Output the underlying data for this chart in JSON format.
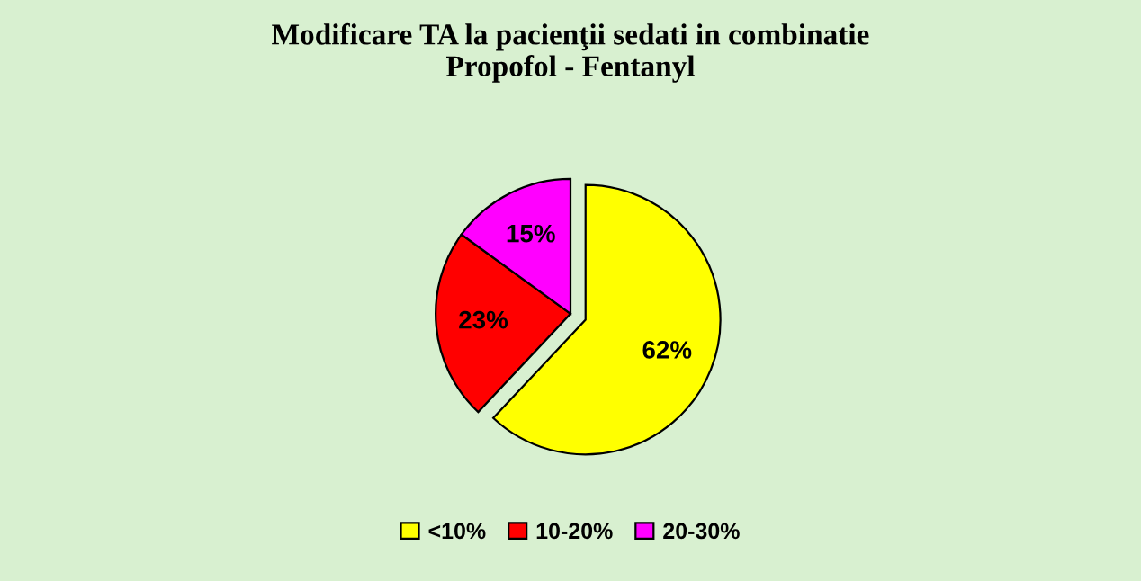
{
  "chart_data": {
    "type": "pie",
    "title": "Modificare TA la pacienţii sedati in combinatie\nPropofol - Fentanyl",
    "categories": [
      "<10%",
      "10-20%",
      "20-30%"
    ],
    "values": [
      62,
      23,
      15
    ],
    "colors": [
      "#ffff00",
      "#ff0000",
      "#ff00ff"
    ],
    "value_labels": [
      "62%",
      "23%",
      "15%"
    ],
    "legend": "bottom"
  }
}
